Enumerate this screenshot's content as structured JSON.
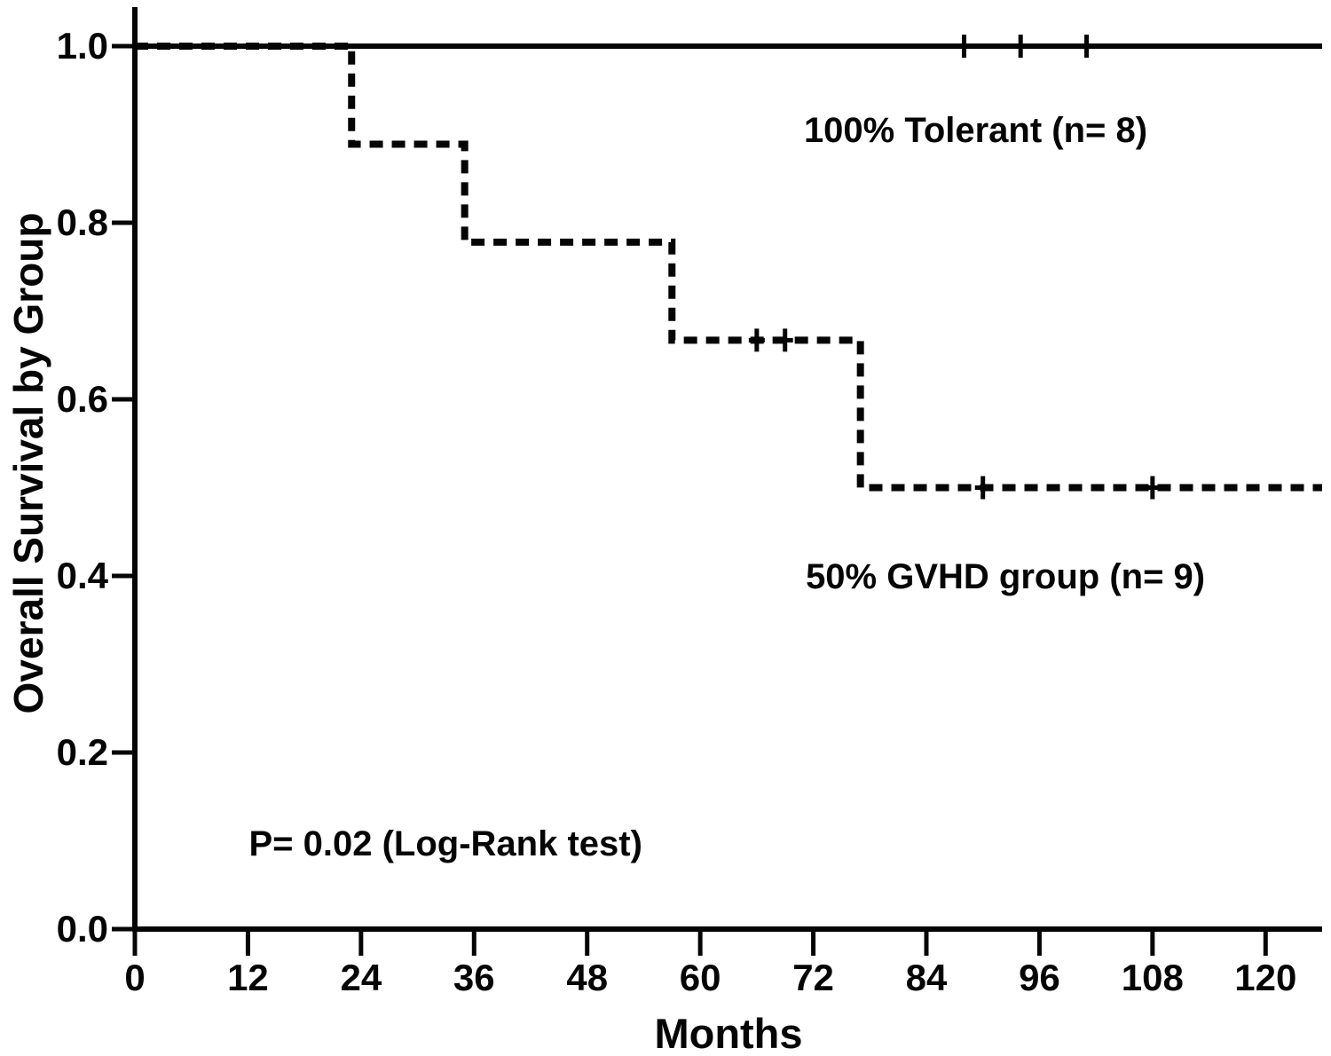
{
  "chart_data": {
    "type": "line",
    "subtype": "kaplan-meier-step",
    "title": "",
    "xlabel": "Months",
    "ylabel": "Overall Survival by Group",
    "xlim": [
      0,
      126
    ],
    "ylim": [
      0.0,
      1.0
    ],
    "grid": false,
    "legend_position": "none",
    "background_color": "#ffffff",
    "line_color": "#050505",
    "x_ticks": [
      {
        "value": 0,
        "label": "0"
      },
      {
        "value": 12,
        "label": "12"
      },
      {
        "value": 24,
        "label": "24"
      },
      {
        "value": 36,
        "label": "36"
      },
      {
        "value": 48,
        "label": "48"
      },
      {
        "value": 60,
        "label": "60"
      },
      {
        "value": 72,
        "label": "72"
      },
      {
        "value": 84,
        "label": "84"
      },
      {
        "value": 96,
        "label": "96"
      },
      {
        "value": 108,
        "label": "108"
      },
      {
        "value": 120,
        "label": "120"
      }
    ],
    "y_ticks": [
      {
        "value": 0.0,
        "label": "0.0"
      },
      {
        "value": 0.2,
        "label": "0.2"
      },
      {
        "value": 0.4,
        "label": "0.4"
      },
      {
        "value": 0.6,
        "label": "0.6"
      },
      {
        "value": 0.8,
        "label": "0.8"
      },
      {
        "value": 1.0,
        "label": "1.0"
      }
    ],
    "series": [
      {
        "name": "Tolerant",
        "n": 8,
        "final_survival_pct": 100,
        "line_style": "solid",
        "step_points": [
          [
            0,
            1.0
          ],
          [
            126,
            1.0
          ]
        ],
        "censor_marks": [
          [
            88,
            1.0
          ],
          [
            94,
            1.0
          ],
          [
            101,
            1.0
          ]
        ]
      },
      {
        "name": "GVHD group",
        "n": 9,
        "final_survival_pct": 50,
        "line_style": "dashed",
        "step_points": [
          [
            0,
            1.0
          ],
          [
            23,
            1.0
          ],
          [
            23,
            0.889
          ],
          [
            35,
            0.889
          ],
          [
            35,
            0.778
          ],
          [
            57,
            0.778
          ],
          [
            57,
            0.667
          ],
          [
            77,
            0.667
          ],
          [
            77,
            0.5
          ],
          [
            126,
            0.5
          ]
        ],
        "censor_marks": [
          [
            66,
            0.667
          ],
          [
            69,
            0.667
          ],
          [
            90,
            0.5
          ],
          [
            108,
            0.5
          ]
        ]
      }
    ],
    "annotations": [
      {
        "text": "100% Tolerant (n= 8)",
        "x": 71.0,
        "y": 0.905
      },
      {
        "text": "50% GVHD group (n= 9)",
        "x": 71.2,
        "y": 0.399
      },
      {
        "text": "P= 0.02 (Log-Rank test)",
        "x": 12.1,
        "y": 0.096
      }
    ]
  }
}
